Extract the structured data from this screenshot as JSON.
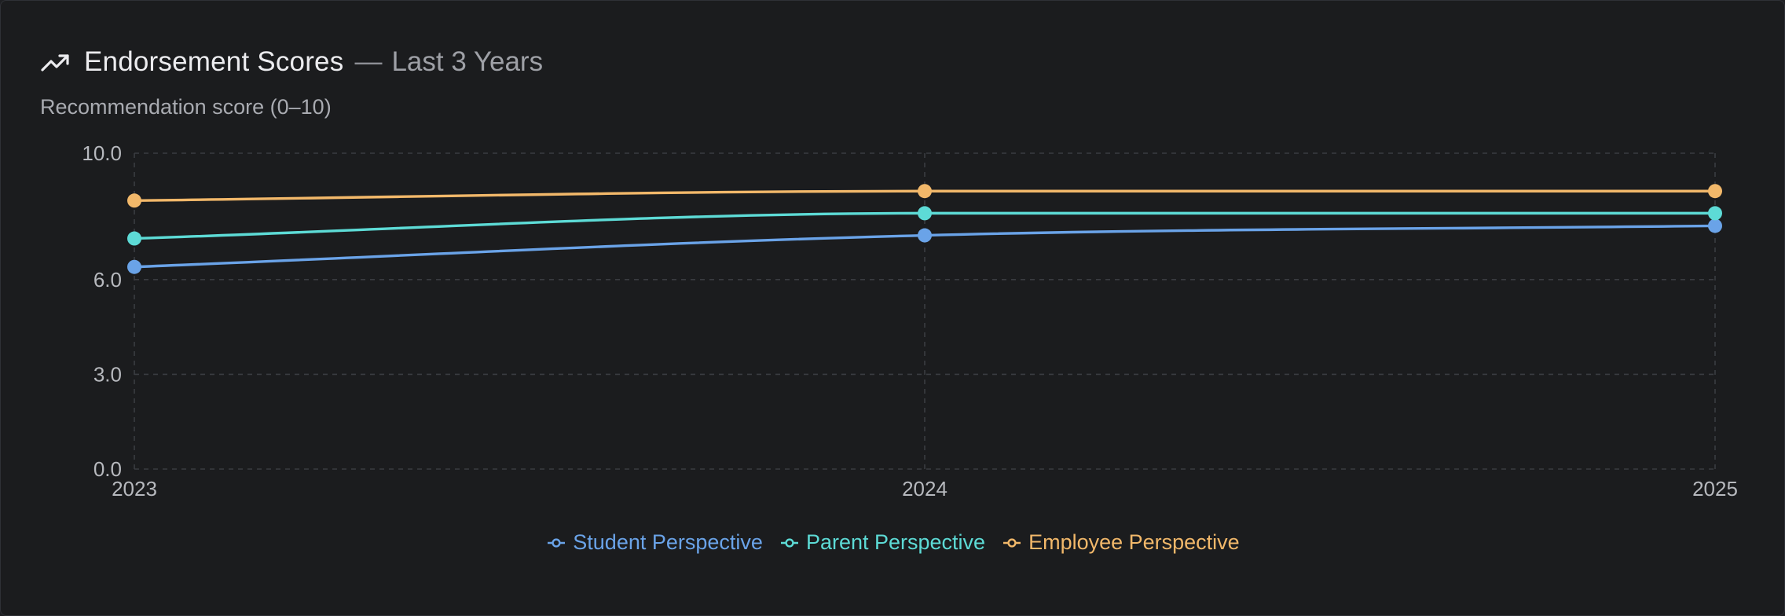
{
  "header": {
    "title": "Endorsement Scores",
    "separator": "—",
    "subtitle": "Last 3 Years",
    "icon": "trending-up-icon"
  },
  "colors": {
    "background": "#1b1c1e",
    "grid": "#3a3c41",
    "student": "#6aa3e8",
    "parent": "#5ddbd6",
    "employee": "#f2b86a"
  },
  "chart_data": {
    "type": "line",
    "title": "Endorsement Scores — Last 3 Years",
    "ylabel": "Recommendation score (0–10)",
    "xlabel": "",
    "categories": [
      "2023",
      "2024",
      "2025"
    ],
    "y_ticks": [
      "0.0",
      "3.0",
      "6.0",
      "10.0"
    ],
    "y_tick_values": [
      0,
      3,
      6,
      10
    ],
    "ylim": [
      0,
      10
    ],
    "grid": true,
    "legend_position": "bottom-center",
    "series": [
      {
        "name": "Student Perspective",
        "values": [
          6.4,
          7.4,
          7.7
        ],
        "color": "#6aa3e8"
      },
      {
        "name": "Parent Perspective",
        "values": [
          7.3,
          8.1,
          8.1
        ],
        "color": "#5ddbd6"
      },
      {
        "name": "Employee Perspective",
        "values": [
          8.5,
          8.8,
          8.8
        ],
        "color": "#f2b86a"
      }
    ]
  }
}
